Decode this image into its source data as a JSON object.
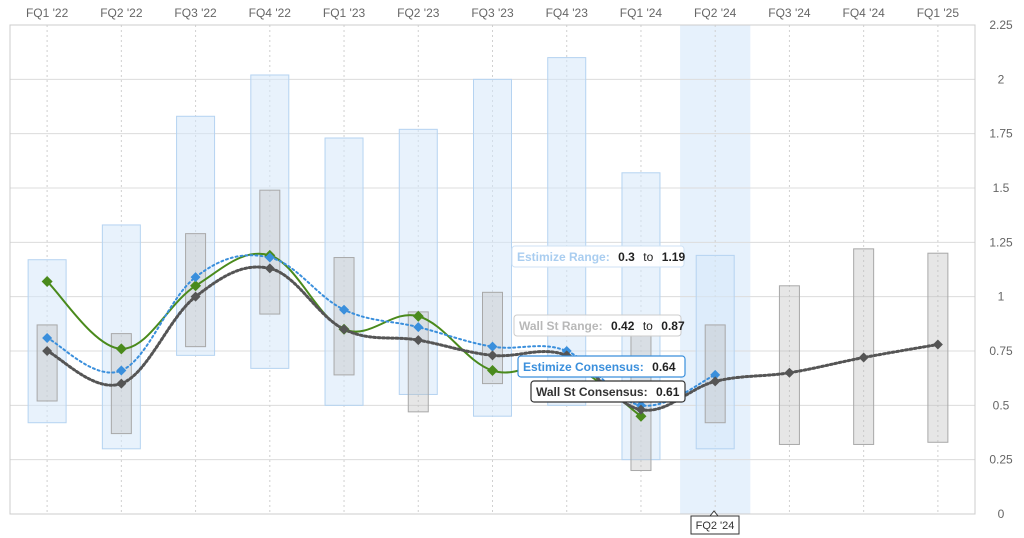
{
  "chart_data": {
    "type": "line",
    "categories": [
      "FQ1 '22",
      "FQ2 '22",
      "FQ3 '22",
      "FQ4 '22",
      "FQ1 '23",
      "FQ2 '23",
      "FQ3 '23",
      "FQ4 '23",
      "FQ1 '24",
      "FQ2 '24",
      "FQ3 '24",
      "FQ4 '24",
      "FQ1 '25"
    ],
    "ylim": [
      0,
      2.25
    ],
    "yticks": [
      0,
      0.25,
      0.5,
      0.75,
      1,
      1.25,
      1.5,
      1.75,
      2,
      2.25
    ],
    "ytick_labels": [
      "0",
      "0.25",
      "0.5",
      "0.75",
      "1",
      "1.25",
      "1.5",
      "1.75",
      "2",
      "2.25"
    ],
    "grid": true,
    "highlighted_category": "FQ2 '24",
    "estimize_range": [
      [
        0.42,
        1.17
      ],
      [
        0.3,
        1.33
      ],
      [
        0.73,
        1.83
      ],
      [
        0.67,
        2.02
      ],
      [
        0.5,
        1.73
      ],
      [
        0.55,
        1.77
      ],
      [
        0.45,
        2.0
      ],
      [
        0.5,
        2.1
      ],
      [
        0.25,
        1.57
      ],
      [
        0.3,
        1.19
      ],
      null,
      null,
      null
    ],
    "wall_st_range": [
      [
        0.52,
        0.87
      ],
      [
        0.37,
        0.83
      ],
      [
        0.77,
        1.29
      ],
      [
        0.92,
        1.49
      ],
      [
        0.64,
        1.18
      ],
      [
        0.47,
        0.93
      ],
      [
        0.6,
        1.02
      ],
      null,
      [
        0.2,
        0.88
      ],
      [
        0.42,
        0.87
      ],
      [
        0.32,
        1.05
      ],
      [
        0.32,
        1.22
      ],
      [
        0.33,
        1.2
      ]
    ],
    "series": [
      {
        "key": "actual",
        "color": "#4a8a1c",
        "values": [
          1.07,
          0.76,
          1.05,
          1.19,
          0.85,
          0.91,
          0.66,
          0.69,
          0.45,
          null,
          null,
          null,
          null
        ]
      },
      {
        "key": "estimize_consensus",
        "color": "#3a8fdc",
        "values": [
          0.81,
          0.66,
          1.09,
          1.18,
          0.94,
          0.86,
          0.77,
          0.75,
          0.5,
          0.64,
          null,
          null,
          null
        ]
      },
      {
        "key": "wall_st_consensus",
        "color": "#555555",
        "values": [
          0.75,
          0.6,
          1.0,
          1.13,
          0.85,
          0.8,
          0.73,
          0.73,
          0.48,
          0.61,
          0.65,
          0.72,
          0.78
        ]
      }
    ]
  },
  "tooltips": {
    "estimize_range": {
      "label": "Estimize Range:",
      "low": "0.3",
      "to": "to",
      "high": "1.19",
      "color": "#a9cdf0"
    },
    "wall_st_range": {
      "label": "Wall St Range:",
      "low": "0.42",
      "to": "to",
      "high": "0.87",
      "color": "#b8b8b8"
    },
    "estimize_consensus": {
      "label": "Estimize Consensus:",
      "value": "0.64",
      "color": "#3a8fdc"
    },
    "wall_st_consensus": {
      "label": "Wall St Consensus:",
      "value": "0.61",
      "color": "#333333"
    }
  },
  "cursor_label": "FQ2 '24"
}
